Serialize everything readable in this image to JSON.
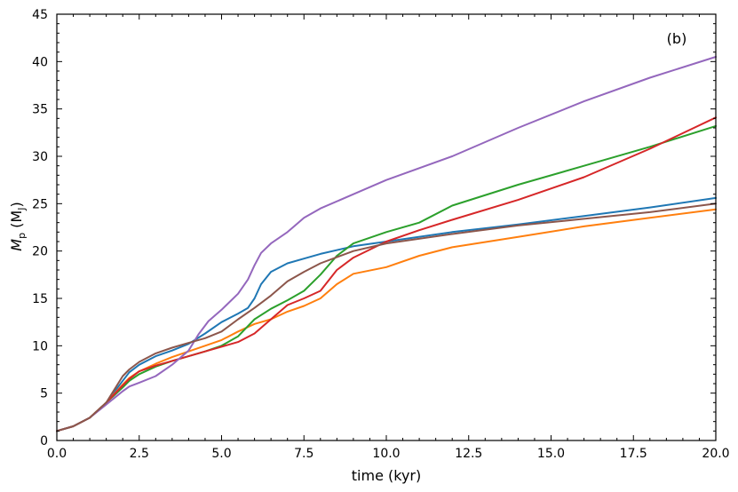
{
  "chart_data": {
    "type": "line",
    "panel_label": "(b)",
    "xlabel": "time (kyr)",
    "ylabel": {
      "symbol": "M",
      "sub": "p",
      "unit_open": " (M",
      "unit_sub": "J",
      "unit_close": ")"
    },
    "xlim": [
      0,
      20
    ],
    "ylim": [
      0,
      45
    ],
    "xticks": [
      0,
      2.5,
      5,
      7.5,
      10,
      12.5,
      15,
      17.5,
      20
    ],
    "xtick_labels": [
      "0.0",
      "2.5",
      "5.0",
      "7.5",
      "10.0",
      "12.5",
      "15.0",
      "17.5",
      "20.0"
    ],
    "yticks": [
      0,
      5,
      10,
      15,
      20,
      25,
      30,
      35,
      40,
      45
    ],
    "ytick_labels": [
      "0",
      "5",
      "10",
      "15",
      "20",
      "25",
      "30",
      "35",
      "40",
      "45"
    ],
    "grid": false,
    "legend": false,
    "series": [
      {
        "color": "#1f77b4",
        "x": [
          0,
          0.5,
          1,
          1.5,
          2,
          2.2,
          2.5,
          3,
          3.5,
          4,
          4.5,
          5,
          5.5,
          5.8,
          6,
          6.2,
          6.5,
          7,
          7.5,
          8,
          9,
          10,
          12,
          14,
          16,
          18,
          20
        ],
        "y": [
          1,
          1.5,
          2.4,
          4.0,
          6.3,
          7.2,
          8.0,
          8.9,
          9.5,
          10.2,
          11.3,
          12.5,
          13.4,
          14.0,
          15.0,
          16.5,
          17.8,
          18.7,
          19.2,
          19.7,
          20.5,
          21.0,
          22.0,
          22.8,
          23.7,
          24.6,
          25.6
        ]
      },
      {
        "color": "#ff7f0e",
        "x": [
          0,
          0.5,
          1,
          1.5,
          2,
          2.2,
          2.5,
          3,
          3.5,
          4,
          4.5,
          5,
          5.5,
          6,
          6.5,
          7,
          7.5,
          8,
          8.5,
          9,
          10,
          11,
          12,
          14,
          16,
          18,
          20
        ],
        "y": [
          1,
          1.5,
          2.4,
          4.0,
          5.9,
          6.6,
          7.3,
          8.1,
          8.8,
          9.4,
          10.0,
          10.6,
          11.5,
          12.3,
          12.8,
          13.6,
          14.2,
          15.0,
          16.5,
          17.6,
          18.3,
          19.5,
          20.4,
          21.5,
          22.6,
          23.5,
          24.4
        ]
      },
      {
        "color": "#2ca02c",
        "x": [
          0,
          0.5,
          1,
          1.5,
          2,
          2.2,
          2.5,
          3,
          3.5,
          4,
          4.5,
          5,
          5.5,
          6,
          6.5,
          7,
          7.5,
          8,
          8.5,
          9,
          10,
          11,
          12,
          14,
          16,
          18,
          20
        ],
        "y": [
          1,
          1.5,
          2.4,
          4.0,
          5.6,
          6.3,
          7.0,
          7.8,
          8.4,
          8.9,
          9.4,
          10.0,
          11.0,
          12.8,
          13.9,
          14.8,
          15.8,
          17.5,
          19.5,
          20.8,
          22.0,
          23.0,
          24.8,
          27.0,
          29.0,
          31.0,
          33.2
        ]
      },
      {
        "color": "#d62728",
        "x": [
          0,
          0.5,
          1,
          1.5,
          2,
          2.2,
          2.5,
          3,
          3.5,
          4,
          4.5,
          5,
          5.5,
          6,
          6.5,
          7,
          7.5,
          8,
          8.5,
          9,
          10,
          11,
          12,
          14,
          16,
          18,
          20
        ],
        "y": [
          1,
          1.5,
          2.4,
          4.0,
          5.8,
          6.5,
          7.3,
          7.9,
          8.4,
          8.9,
          9.4,
          9.9,
          10.4,
          11.3,
          12.8,
          14.3,
          15.0,
          15.8,
          18.0,
          19.3,
          21.0,
          22.2,
          23.3,
          25.4,
          27.8,
          30.8,
          34.1
        ]
      },
      {
        "color": "#9467bd",
        "x": [
          0,
          0.5,
          1,
          1.5,
          2,
          2.2,
          2.5,
          3,
          3.5,
          4,
          4.3,
          4.6,
          5,
          5.5,
          5.8,
          6,
          6.2,
          6.5,
          7,
          7.5,
          8,
          9,
          10,
          12,
          14,
          16,
          18,
          20
        ],
        "y": [
          1,
          1.5,
          2.4,
          3.8,
          5.2,
          5.7,
          6.1,
          6.8,
          8.0,
          9.5,
          11.2,
          12.6,
          13.8,
          15.5,
          17.0,
          18.5,
          19.8,
          20.8,
          22.0,
          23.5,
          24.5,
          26.0,
          27.5,
          30.0,
          33.0,
          35.8,
          38.3,
          40.5
        ]
      },
      {
        "color": "#8c564b",
        "x": [
          0,
          0.5,
          1,
          1.5,
          2,
          2.2,
          2.5,
          3,
          3.5,
          4,
          4.5,
          5,
          5.5,
          6,
          6.5,
          7,
          7.5,
          8,
          9,
          10,
          12,
          14,
          16,
          18,
          20
        ],
        "y": [
          1,
          1.5,
          2.4,
          4.0,
          6.8,
          7.5,
          8.3,
          9.2,
          9.8,
          10.3,
          10.8,
          11.5,
          12.8,
          14.0,
          15.3,
          16.8,
          17.8,
          18.7,
          20.0,
          20.8,
          21.8,
          22.7,
          23.4,
          24.1,
          25.0
        ]
      }
    ]
  }
}
